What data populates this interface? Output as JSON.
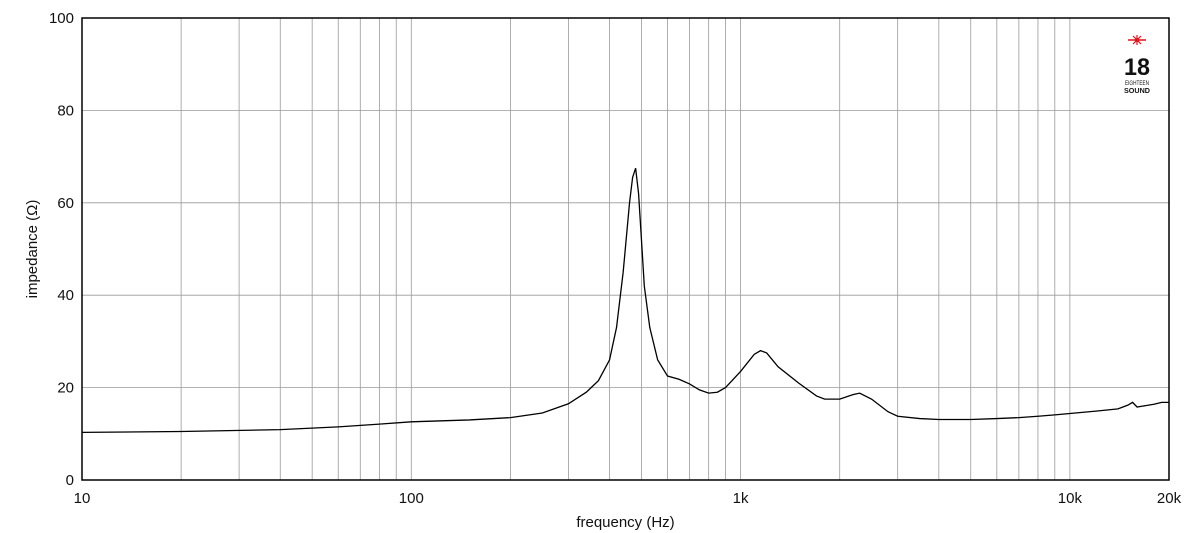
{
  "chart_data": {
    "type": "line",
    "xlabel": "frequency (Hz)",
    "ylabel": "impedance (Ω)",
    "x_scale": "log",
    "xlim": [
      10,
      20000
    ],
    "ylim": [
      0,
      100
    ],
    "x_ticks": [
      {
        "value": 10,
        "label": "10"
      },
      {
        "value": 100,
        "label": "100"
      },
      {
        "value": 1000,
        "label": "1k"
      },
      {
        "value": 10000,
        "label": "10k"
      },
      {
        "value": 20000,
        "label": "20k"
      }
    ],
    "y_ticks": [
      {
        "value": 0,
        "label": "0"
      },
      {
        "value": 20,
        "label": "20"
      },
      {
        "value": 40,
        "label": "40"
      },
      {
        "value": 60,
        "label": "60"
      },
      {
        "value": 80,
        "label": "80"
      },
      {
        "value": 100,
        "label": "100"
      }
    ],
    "grid": true,
    "line_color": "#000000",
    "series": [
      {
        "x": [
          10,
          20,
          40,
          60,
          80,
          100,
          150,
          200,
          250,
          300,
          340,
          370,
          400,
          420,
          440,
          460,
          470,
          480,
          490,
          500,
          510,
          530,
          560,
          600,
          650,
          700,
          750,
          800,
          850,
          900,
          1000,
          1100,
          1150,
          1200,
          1300,
          1500,
          1700,
          1800,
          2000,
          2200,
          2300,
          2500,
          2800,
          3000,
          3500,
          4000,
          5000,
          6000,
          7000,
          8000,
          9000,
          10000,
          12000,
          14000,
          15000,
          15500,
          16000,
          17000,
          18000,
          19000,
          20000
        ],
        "y": [
          10.3,
          10.5,
          10.9,
          11.5,
          12.1,
          12.6,
          13.0,
          13.5,
          14.5,
          16.5,
          19.0,
          21.5,
          26.0,
          33.0,
          45.0,
          60.0,
          65.5,
          67.5,
          62.0,
          52.0,
          42.0,
          33.0,
          26.0,
          22.5,
          21.8,
          20.8,
          19.5,
          18.8,
          19.0,
          20.0,
          23.5,
          27.2,
          28.0,
          27.5,
          24.5,
          21.0,
          18.2,
          17.5,
          17.5,
          18.5,
          18.8,
          17.5,
          14.8,
          13.8,
          13.3,
          13.1,
          13.1,
          13.3,
          13.5,
          13.8,
          14.1,
          14.4,
          14.9,
          15.4,
          16.2,
          16.8,
          15.8,
          16.1,
          16.4,
          16.8,
          16.8
        ]
      }
    ]
  },
  "logo": {
    "text": "18",
    "subtext": "EIGHTEEN",
    "word": "SOUND",
    "accent_color": "#e0121b"
  }
}
